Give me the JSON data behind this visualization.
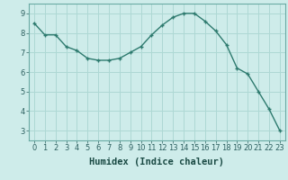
{
  "xlabel": "Humidex (Indice chaleur)",
  "x_values": [
    0,
    1,
    2,
    3,
    4,
    5,
    6,
    7,
    8,
    9,
    10,
    11,
    12,
    13,
    14,
    15,
    16,
    17,
    18,
    19,
    20,
    21,
    22,
    23
  ],
  "y_values": [
    8.5,
    7.9,
    7.9,
    7.3,
    7.1,
    6.7,
    6.6,
    6.6,
    6.7,
    7.0,
    7.3,
    7.9,
    8.4,
    8.8,
    9.0,
    9.0,
    8.6,
    8.1,
    7.4,
    6.2,
    5.9,
    5.0,
    4.1,
    3.0
  ],
  "line_color": "#2d7a6e",
  "marker": "+",
  "bg_color": "#ceecea",
  "grid_color": "#aed8d4",
  "ylim": [
    2.5,
    9.5
  ],
  "xlim": [
    -0.5,
    23.5
  ],
  "yticks": [
    3,
    4,
    5,
    6,
    7,
    8,
    9
  ],
  "xticks": [
    0,
    1,
    2,
    3,
    4,
    5,
    6,
    7,
    8,
    9,
    10,
    11,
    12,
    13,
    14,
    15,
    16,
    17,
    18,
    19,
    20,
    21,
    22,
    23
  ],
  "tick_fontsize": 6.0,
  "xlabel_fontsize": 7.5,
  "xlabel_fontweight": "bold",
  "line_width": 1.0,
  "marker_size": 3.5
}
